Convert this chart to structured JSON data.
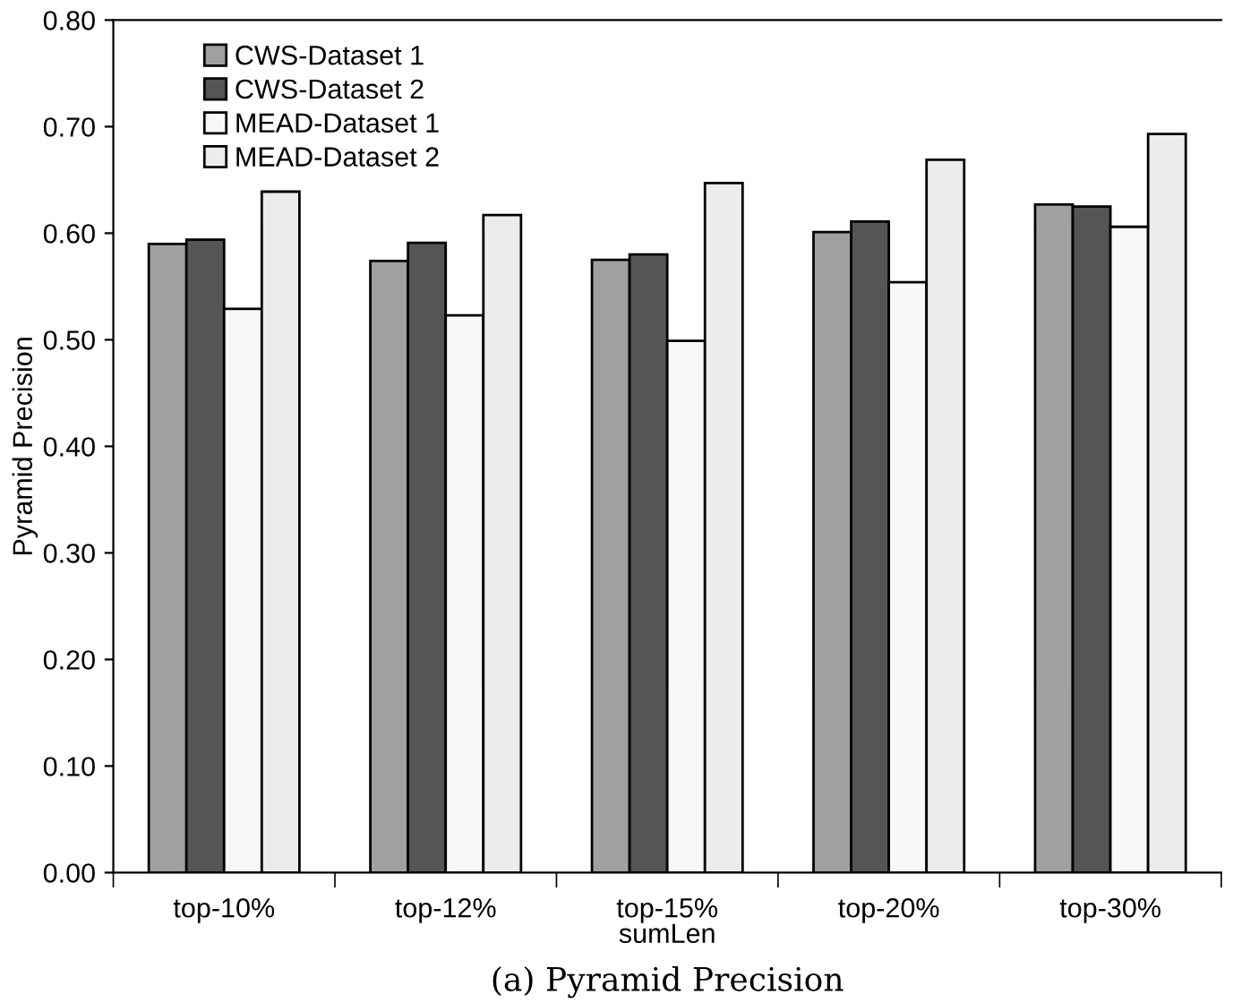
{
  "chart_data": {
    "type": "bar",
    "title": "(a) Pyramid Precision",
    "xlabel": "sumLen",
    "ylabel": "Pyramid Precision",
    "categories": [
      "top-10%",
      "top-12%",
      "top-15%",
      "top-20%",
      "top-30%"
    ],
    "series": [
      {
        "name": "CWS-Dataset 1",
        "color": "#a0a0a0",
        "values": [
          0.59,
          0.574,
          0.575,
          0.601,
          0.627
        ]
      },
      {
        "name": "CWS-Dataset 2",
        "color": "#555555",
        "values": [
          0.594,
          0.591,
          0.58,
          0.611,
          0.625
        ]
      },
      {
        "name": "MEAD-Dataset 1",
        "color": "#f8f8f8",
        "values": [
          0.529,
          0.523,
          0.499,
          0.554,
          0.606
        ]
      },
      {
        "name": "MEAD-Dataset 2",
        "color": "#ececec",
        "values": [
          0.639,
          0.617,
          0.647,
          0.669,
          0.693
        ]
      }
    ],
    "ylim": [
      0,
      0.8
    ],
    "yticks": [
      {
        "value": 0,
        "label": "0.00"
      },
      {
        "value": 0.1,
        "label": "0.10"
      },
      {
        "value": 0.2,
        "label": "0.20"
      },
      {
        "value": 0.3,
        "label": "0.30"
      },
      {
        "value": 0.4,
        "label": "0.40"
      },
      {
        "value": 0.5,
        "label": "0.50"
      },
      {
        "value": 0.6,
        "label": "0.60"
      },
      {
        "value": 0.7,
        "label": "0.70"
      },
      {
        "value": 0.8,
        "label": "0.80"
      }
    ],
    "legend": "top left",
    "grid": false
  }
}
